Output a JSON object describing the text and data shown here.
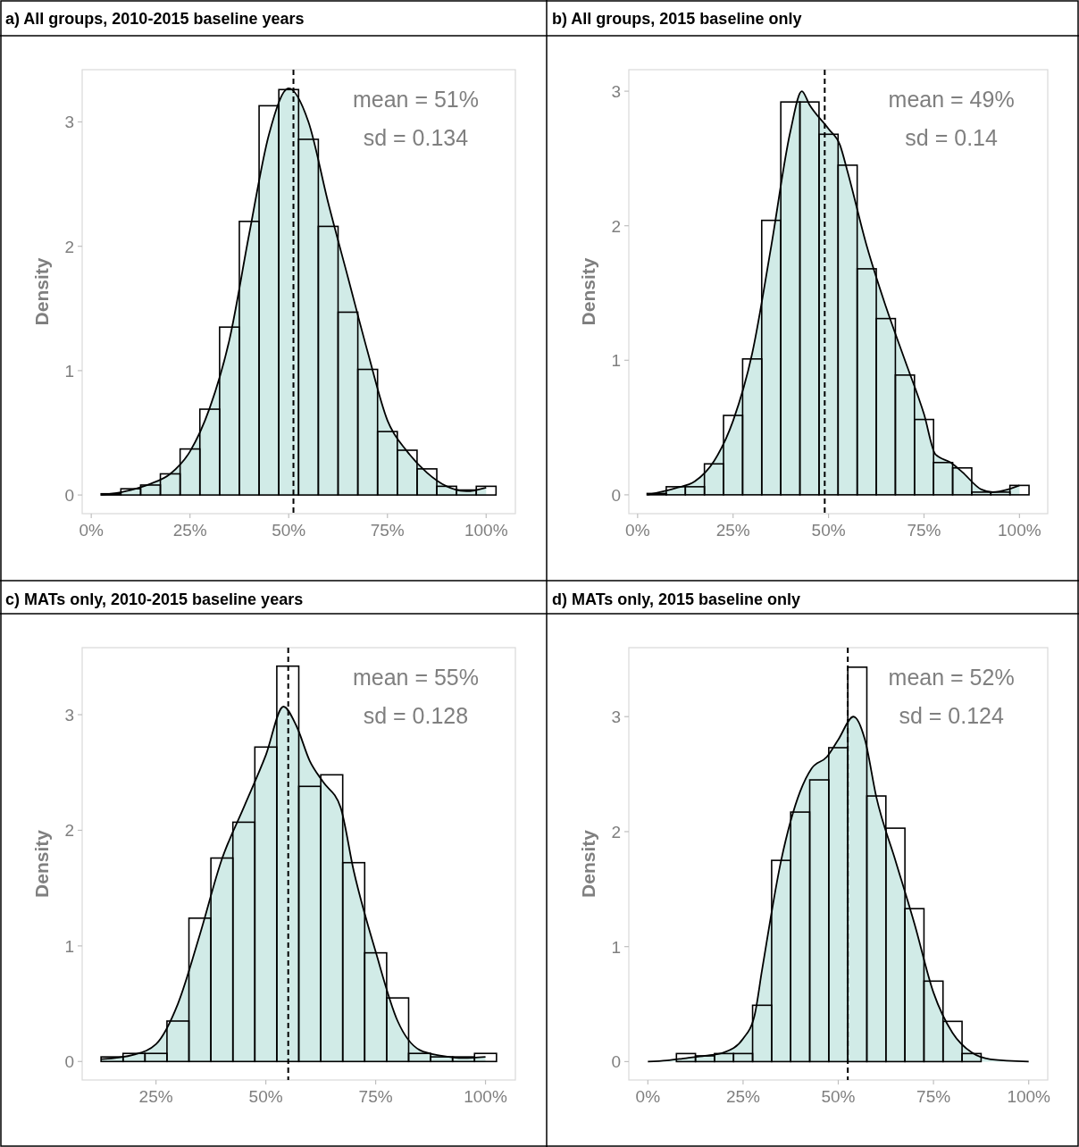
{
  "chart_data": [
    {
      "type": "histogram",
      "title": "a) All groups, 2010-2015 baseline years",
      "ylabel": "Density",
      "color": "#000000",
      "bins": [
        0.025,
        0.075,
        0.125,
        0.175,
        0.225,
        0.275,
        0.325,
        0.375,
        0.425,
        0.475,
        0.525,
        0.575,
        0.625,
        0.675,
        0.725,
        0.775,
        0.825,
        0.875,
        0.925,
        0.975,
        1.025
      ],
      "values": [
        0.01,
        0.05,
        0.08,
        0.17,
        0.37,
        0.69,
        1.35,
        2.2,
        3.13,
        3.26,
        2.86,
        2.16,
        1.47,
        1.01,
        0.51,
        0.36,
        0.21,
        0.07,
        0.04,
        0.07
      ],
      "series": [
        {
          "type": "area",
          "color": "#d1ebe7",
          "x": [
            0.025,
            0.05,
            0.1,
            0.15,
            0.2,
            0.25,
            0.3,
            0.35,
            0.4,
            0.45,
            0.5,
            0.55,
            0.6,
            0.65,
            0.7,
            0.75,
            0.8,
            0.85,
            0.9,
            0.95,
            1.0
          ],
          "values": [
            0,
            0.01,
            0.04,
            0.09,
            0.17,
            0.35,
            0.7,
            1.25,
            2.1,
            2.9,
            3.27,
            3.0,
            2.35,
            1.75,
            1.15,
            0.6,
            0.35,
            0.18,
            0.07,
            0.03,
            0.06
          ]
        }
      ],
      "ref_lines": [
        {
          "axis": "x",
          "value": 0.512,
          "line_style": "dashed",
          "color": "#000000"
        }
      ],
      "annotations": [
        "mean = 51%",
        "sd = 0.134"
      ],
      "xlim": [
        -0.023,
        1.074
      ],
      "xticks": [
        {
          "value": 0,
          "label": "0%"
        },
        {
          "value": 0.25,
          "label": "25%"
        },
        {
          "value": 0.5,
          "label": "50%"
        },
        {
          "value": 0.75,
          "label": "75%"
        },
        {
          "value": 1,
          "label": "100%"
        }
      ],
      "ylim": [
        -0.15,
        3.42
      ],
      "yticks": [
        0,
        1,
        2,
        3
      ]
    },
    {
      "type": "histogram",
      "title": "b) All groups, 2015 baseline only",
      "ylabel": "Density",
      "color": "#000000",
      "bins": [
        0.025,
        0.075,
        0.125,
        0.175,
        0.225,
        0.275,
        0.325,
        0.375,
        0.425,
        0.475,
        0.525,
        0.575,
        0.625,
        0.675,
        0.725,
        0.775,
        0.825,
        0.875,
        0.925,
        0.975,
        1.025
      ],
      "values": [
        0.01,
        0.06,
        0.06,
        0.23,
        0.59,
        1.01,
        2.04,
        2.92,
        2.92,
        2.68,
        2.45,
        1.68,
        1.31,
        0.89,
        0.56,
        0.24,
        0.2,
        0.02,
        0.02,
        0.07
      ],
      "series": [
        {
          "type": "area",
          "color": "#d1ebe7",
          "x": [
            0.025,
            0.1,
            0.15,
            0.2,
            0.25,
            0.3,
            0.35,
            0.4,
            0.43,
            0.45,
            0.5,
            0.53,
            0.55,
            0.6,
            0.65,
            0.7,
            0.75,
            0.78,
            0.82,
            0.85,
            0.9,
            0.93,
            0.97,
            1.0
          ],
          "values": [
            0,
            0.05,
            0.1,
            0.25,
            0.55,
            1.05,
            1.85,
            2.7,
            3.0,
            2.9,
            2.72,
            2.6,
            2.4,
            1.85,
            1.4,
            1.0,
            0.6,
            0.3,
            0.24,
            0.17,
            0.04,
            0.02,
            0.04,
            0.07
          ]
        }
      ],
      "ref_lines": [
        {
          "axis": "x",
          "value": 0.49,
          "line_style": "dashed",
          "color": "#000000"
        }
      ],
      "annotations": [
        "mean = 49%",
        "sd = 0.14"
      ],
      "xlim": [
        -0.023,
        1.074
      ],
      "xticks": [
        {
          "value": 0,
          "label": "0%"
        },
        {
          "value": 0.25,
          "label": "25%"
        },
        {
          "value": 0.5,
          "label": "50%"
        },
        {
          "value": 0.75,
          "label": "75%"
        },
        {
          "value": 1,
          "label": "100%"
        }
      ],
      "ylim": [
        -0.14,
        3.16
      ],
      "yticks": [
        0,
        1,
        2,
        3
      ]
    },
    {
      "type": "histogram",
      "title": "c) MATs only, 2010-2015 baseline years",
      "ylabel": "Density",
      "color": "#000000",
      "bins": [
        0.125,
        0.175,
        0.225,
        0.275,
        0.325,
        0.375,
        0.425,
        0.475,
        0.525,
        0.575,
        0.625,
        0.675,
        0.725,
        0.775,
        0.825,
        0.875,
        0.925,
        0.975,
        1.025
      ],
      "values": [
        0.04,
        0.07,
        0.07,
        0.35,
        1.24,
        1.76,
        2.07,
        2.72,
        3.42,
        2.38,
        2.48,
        1.72,
        0.94,
        0.55,
        0.07,
        0.04,
        0.04,
        0.07
      ],
      "series": [
        {
          "type": "area",
          "color": "#d1ebe7",
          "x": [
            0.125,
            0.2,
            0.25,
            0.3,
            0.35,
            0.4,
            0.45,
            0.5,
            0.54,
            0.57,
            0.6,
            0.63,
            0.67,
            0.7,
            0.75,
            0.8,
            0.85,
            0.9,
            0.95,
            1.0
          ],
          "values": [
            0.02,
            0.06,
            0.15,
            0.5,
            1.1,
            1.75,
            2.2,
            2.65,
            3.07,
            2.9,
            2.6,
            2.42,
            2.2,
            1.65,
            0.95,
            0.35,
            0.1,
            0.05,
            0.03,
            0.04
          ]
        }
      ],
      "ref_lines": [
        {
          "axis": "x",
          "value": 0.551,
          "line_style": "dashed",
          "color": "#000000"
        }
      ],
      "annotations": [
        "mean = 55%",
        "sd = 0.128"
      ],
      "xlim": [
        0.082,
        1.068
      ],
      "xticks": [
        {
          "value": 0.25,
          "label": "25%"
        },
        {
          "value": 0.5,
          "label": "50%"
        },
        {
          "value": 0.75,
          "label": "75%"
        },
        {
          "value": 1,
          "label": "100%"
        }
      ],
      "ylim": [
        -0.16,
        3.58
      ],
      "yticks": [
        0,
        1,
        2,
        3
      ]
    },
    {
      "type": "histogram",
      "title": "d) MATs only, 2015 baseline only",
      "ylabel": "Density",
      "color": "#000000",
      "bins": [
        0.075,
        0.125,
        0.175,
        0.225,
        0.275,
        0.325,
        0.375,
        0.425,
        0.475,
        0.525,
        0.575,
        0.625,
        0.675,
        0.725,
        0.775,
        0.825,
        0.875
      ],
      "values": [
        0.07,
        0.05,
        0.07,
        0.07,
        0.49,
        1.75,
        2.17,
        2.45,
        2.73,
        3.43,
        2.31,
        2.03,
        1.33,
        0.7,
        0.35,
        0.07
      ],
      "series": [
        {
          "type": "area",
          "color": "#d1ebe7",
          "x": [
            0,
            0.05,
            0.1,
            0.15,
            0.2,
            0.25,
            0.28,
            0.3,
            0.35,
            0.4,
            0.43,
            0.47,
            0.5,
            0.54,
            0.57,
            0.6,
            0.65,
            0.7,
            0.75,
            0.8,
            0.85,
            0.9,
            1.0
          ],
          "values": [
            0,
            0.01,
            0.03,
            0.05,
            0.08,
            0.2,
            0.4,
            0.8,
            1.75,
            2.35,
            2.55,
            2.65,
            2.8,
            3.0,
            2.8,
            2.3,
            1.75,
            1.2,
            0.6,
            0.25,
            0.08,
            0.02,
            0
          ]
        }
      ],
      "ref_lines": [
        {
          "axis": "x",
          "value": 0.525,
          "line_style": "dashed",
          "color": "#000000"
        }
      ],
      "annotations": [
        "mean = 52%",
        "sd = 0.124"
      ],
      "xlim": [
        -0.05,
        1.05
      ],
      "xticks": [
        {
          "value": 0,
          "label": "0%"
        },
        {
          "value": 0.25,
          "label": "25%"
        },
        {
          "value": 0.5,
          "label": "50%"
        },
        {
          "value": 0.75,
          "label": "75%"
        },
        {
          "value": 1,
          "label": "100%"
        }
      ],
      "ylim": [
        -0.16,
        3.6
      ],
      "yticks": [
        0,
        1,
        2,
        3
      ]
    }
  ]
}
